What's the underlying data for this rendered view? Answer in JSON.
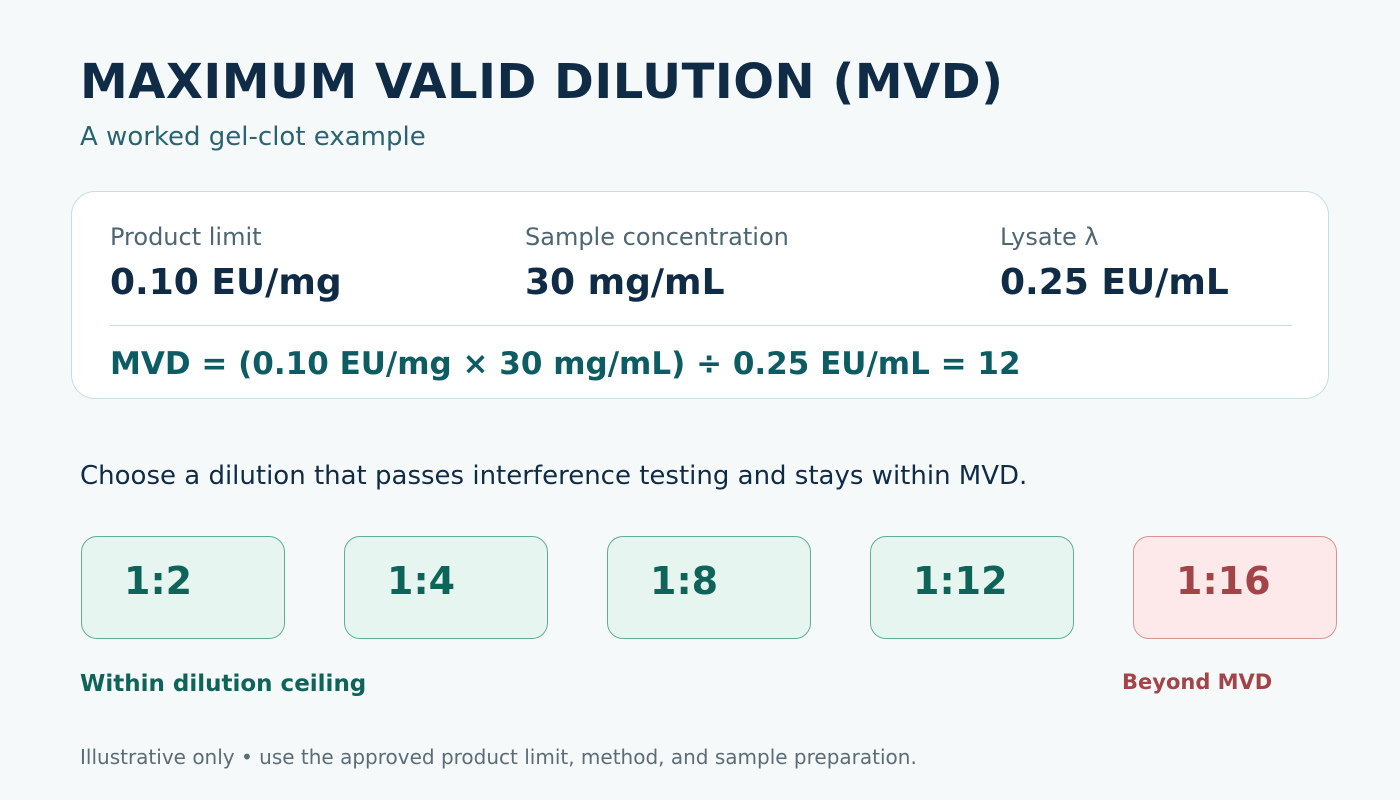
{
  "header": {
    "title": "MAXIMUM VALID DILUTION (MVD)",
    "subtitle": "A worked gel-clot example"
  },
  "parameters": [
    {
      "label": "Product limit",
      "value": "0.10 EU/mg"
    },
    {
      "label": "Sample concentration",
      "value": "30 mg/mL"
    },
    {
      "label": "Lysate λ",
      "value": "0.25 EU/mL"
    }
  ],
  "formula": "MVD = (0.10 EU/mg × 30 mg/mL) ÷ 0.25 EU/mL = 12",
  "instruction": "Choose a dilution that passes interference testing and stays within MVD.",
  "dilutions": [
    {
      "label": "1:2",
      "status": "within"
    },
    {
      "label": "1:4",
      "status": "within"
    },
    {
      "label": "1:8",
      "status": "within"
    },
    {
      "label": "1:12",
      "status": "within"
    },
    {
      "label": "1:16",
      "status": "beyond"
    }
  ],
  "legend": {
    "within": "Within dilution ceiling",
    "beyond": "Beyond MVD"
  },
  "footnote": "Illustrative only • use the approved product limit, method, and sample preparation.",
  "colors": {
    "title": "#0f2b46",
    "accent_teal": "#0e5c63",
    "within_fill": "#e7f5f0",
    "within_border": "#5fae91",
    "within_text": "#0e6459",
    "beyond_fill": "#fde9e9",
    "beyond_border": "#d89393",
    "beyond_text": "#a34548"
  }
}
